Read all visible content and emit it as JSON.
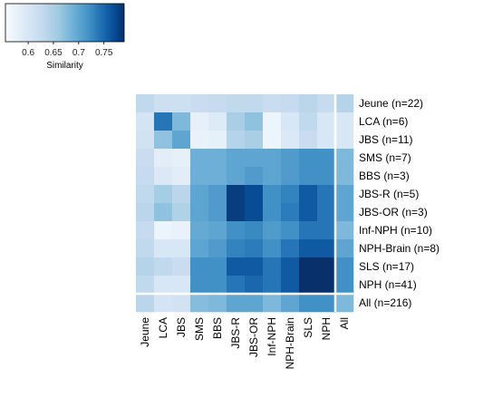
{
  "chart_data": {
    "type": "heatmap",
    "title": "",
    "rows": [
      "Jeune (n=22)",
      "LCA (n=6)",
      "JBS (n=11)",
      "SMS (n=7)",
      "BBS (n=3)",
      "JBS-R (n=5)",
      "JBS-OR (n=3)",
      "Inf-NPH (n=10)",
      "NPH-Brain (n=8)",
      "SLS (n=17)",
      "NPH (n=41)",
      "All (n=216)"
    ],
    "columns": [
      "Jeune",
      "LCA",
      "JBS",
      "SMS",
      "BBS",
      "JBS-R",
      "JBS-OR",
      "Inf-NPH",
      "NPH-Brain",
      "SLS",
      "NPH",
      "All"
    ],
    "values": [
      [
        0.63,
        0.615,
        0.615,
        0.62,
        0.625,
        0.63,
        0.63,
        0.62,
        0.625,
        0.635,
        0.625,
        0.64
      ],
      [
        0.605,
        0.74,
        0.68,
        0.58,
        0.59,
        0.65,
        0.67,
        0.57,
        0.6,
        0.63,
        0.6,
        0.6
      ],
      [
        0.61,
        0.67,
        0.7,
        0.575,
        0.58,
        0.64,
        0.65,
        0.57,
        0.595,
        0.62,
        0.6,
        0.6
      ],
      [
        0.62,
        0.585,
        0.58,
        0.69,
        0.69,
        0.7,
        0.7,
        0.7,
        0.71,
        0.72,
        0.72,
        0.68
      ],
      [
        0.625,
        0.595,
        0.585,
        0.69,
        0.69,
        0.7,
        0.71,
        0.7,
        0.71,
        0.72,
        0.72,
        0.68
      ],
      [
        0.63,
        0.655,
        0.635,
        0.7,
        0.71,
        0.78,
        0.77,
        0.72,
        0.73,
        0.76,
        0.74,
        0.7
      ],
      [
        0.635,
        0.67,
        0.645,
        0.7,
        0.71,
        0.78,
        0.77,
        0.72,
        0.735,
        0.76,
        0.74,
        0.7
      ],
      [
        0.625,
        0.57,
        0.575,
        0.695,
        0.7,
        0.72,
        0.725,
        0.71,
        0.72,
        0.74,
        0.74,
        0.68
      ],
      [
        0.63,
        0.6,
        0.6,
        0.7,
        0.71,
        0.73,
        0.735,
        0.72,
        0.74,
        0.76,
        0.76,
        0.7
      ],
      [
        0.64,
        0.63,
        0.62,
        0.72,
        0.72,
        0.76,
        0.76,
        0.74,
        0.76,
        0.81,
        0.79,
        0.72
      ],
      [
        0.63,
        0.6,
        0.6,
        0.72,
        0.72,
        0.74,
        0.75,
        0.74,
        0.76,
        0.79,
        0.79,
        0.72
      ],
      [
        0.635,
        0.605,
        0.61,
        0.675,
        0.68,
        0.7,
        0.7,
        0.68,
        0.7,
        0.72,
        0.72,
        0.68
      ]
    ],
    "separator_after_row": 10,
    "separator_after_col": 10,
    "colorbar": {
      "label": "Similarity",
      "ticks": [
        "0.6",
        "0.65",
        "0.7",
        "0.75"
      ],
      "tick_values": [
        0.6,
        0.65,
        0.7,
        0.75
      ],
      "range": [
        0.555,
        0.79
      ],
      "low_color": "#f7fbff",
      "high_color": "#08306b",
      "placement": "top-left"
    }
  }
}
